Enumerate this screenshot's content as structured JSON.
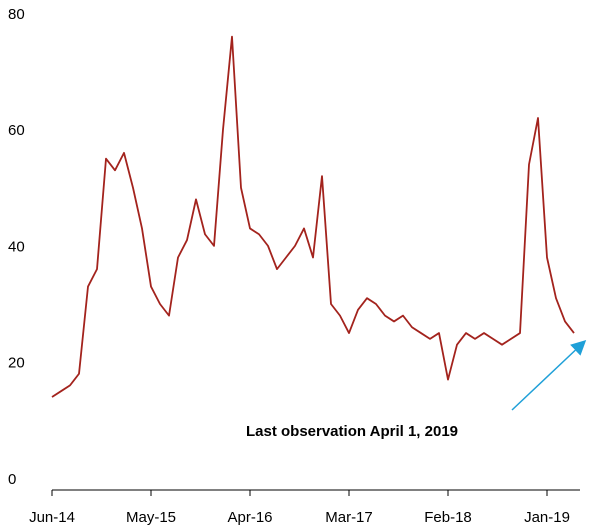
{
  "chart_data": {
    "type": "line",
    "categories": [
      "Jun-14",
      null,
      null,
      null,
      null,
      null,
      null,
      null,
      null,
      null,
      null,
      "May-15",
      null,
      null,
      null,
      null,
      null,
      null,
      null,
      null,
      null,
      null,
      "Apr-16",
      null,
      null,
      null,
      null,
      null,
      null,
      null,
      null,
      null,
      null,
      "Mar-17",
      null,
      null,
      null,
      null,
      null,
      null,
      null,
      null,
      null,
      null,
      "Feb-18",
      null,
      null,
      null,
      null,
      null,
      null,
      null,
      null,
      null,
      null,
      "Jan-19",
      null,
      null,
      null
    ],
    "series": [
      {
        "color": "#a3231d",
        "values": [
          16,
          17,
          18,
          20,
          35,
          38,
          57,
          55,
          58,
          52,
          45,
          35,
          32,
          30,
          40,
          43,
          50,
          44,
          42,
          62,
          78,
          52,
          45,
          44,
          42,
          38,
          40,
          42,
          45,
          40,
          54,
          32,
          30,
          27,
          31,
          33,
          32,
          30,
          29,
          30,
          28,
          27,
          26,
          27,
          19,
          25,
          27,
          26,
          27,
          26,
          25,
          26,
          27,
          56,
          64,
          40,
          33,
          29,
          27
        ]
      }
    ],
    "ylim": [
      0,
      80
    ],
    "yticks": [
      0,
      20,
      40,
      60,
      80
    ],
    "annotation": "Last observation April 1, 2019"
  }
}
